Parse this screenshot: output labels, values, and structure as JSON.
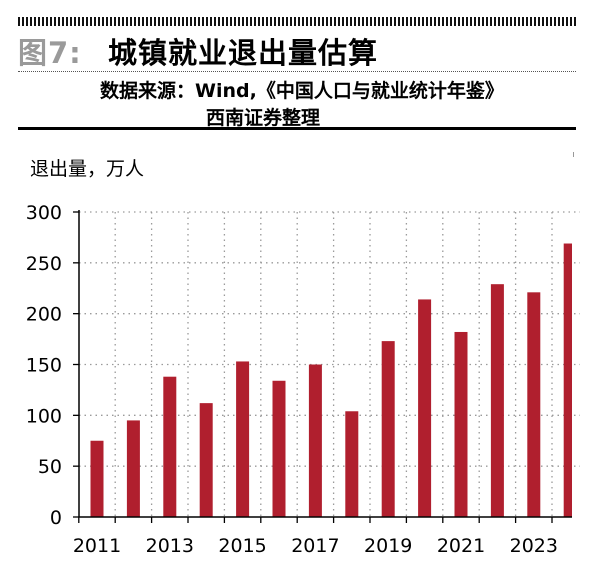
{
  "header": {
    "figure_number": "图7:",
    "title": "城镇就业退出量估算",
    "source_line1": "数据来源：Wind,《中国人口与就业统计年鉴》",
    "source_line2": "西南证券整理"
  },
  "chart_data": {
    "type": "bar",
    "title": "城镇就业退出量估算",
    "ylabel": "退出量，万人",
    "xlabel": "",
    "categories": [
      "2011",
      "2012",
      "2013",
      "2014",
      "2015",
      "2016",
      "2017",
      "2018",
      "2019",
      "2020",
      "2021",
      "2022",
      "2023",
      "2024"
    ],
    "values": [
      75,
      95,
      138,
      112,
      153,
      134,
      150,
      104,
      173,
      214,
      182,
      229,
      221,
      269
    ],
    "x_tick_labels": [
      "2011",
      "2013",
      "2015",
      "2017",
      "2019",
      "2021",
      "2023"
    ],
    "y_ticks": [
      0,
      50,
      100,
      150,
      200,
      250,
      300
    ],
    "ylim": [
      0,
      300
    ],
    "grid": true,
    "colors": {
      "bar": "#b01f2e",
      "grid": "#9a9a9a",
      "axis": "#000000"
    }
  }
}
